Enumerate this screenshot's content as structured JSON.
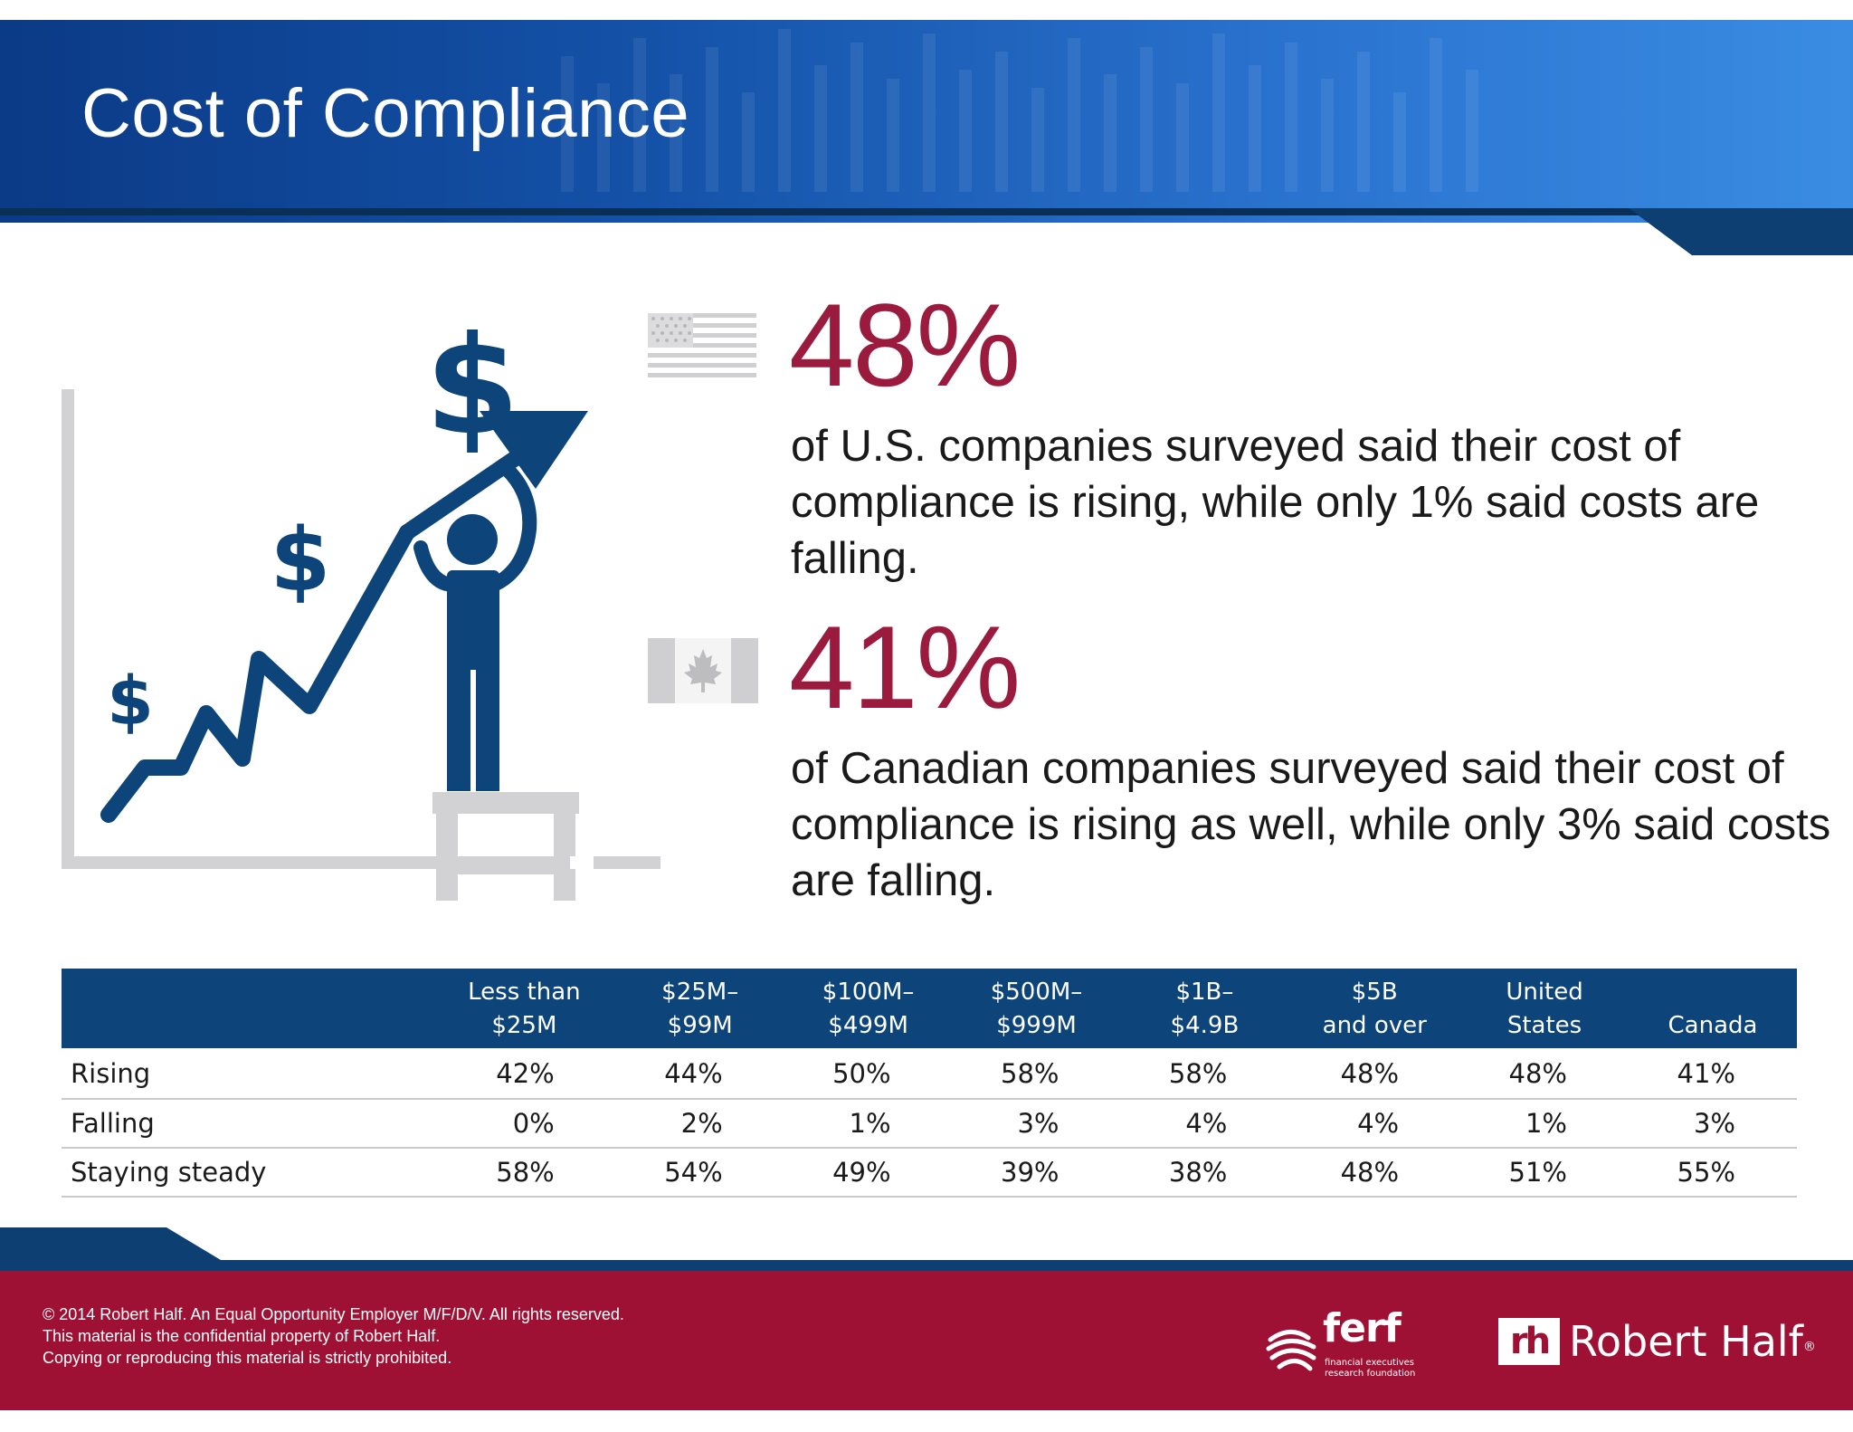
{
  "header": {
    "title": "Cost of Compliance"
  },
  "colors": {
    "header_blue": "#1452a8",
    "navy": "#0d4479",
    "accent_red": "#9b1b3f",
    "footer_red": "#9e1134",
    "grey": "#c9c9c9"
  },
  "stats": {
    "us": {
      "flag_icon": "us-flag-icon",
      "value": "48%",
      "text": "of U.S. companies surveyed said their cost of compliance is rising, while only 1% said costs are falling."
    },
    "canada": {
      "flag_icon": "canada-flag-icon",
      "value": "41%",
      "text": "of Canadian companies surveyed said their cost of compliance is rising as well, while only 3% said costs are falling."
    }
  },
  "table": {
    "columns": [
      {
        "line1": "Less than",
        "line2": "$25M"
      },
      {
        "line1": "$25M–",
        "line2": "$99M"
      },
      {
        "line1": "$100M–",
        "line2": "$499M"
      },
      {
        "line1": "$500M–",
        "line2": "$999M"
      },
      {
        "line1": "$1B–",
        "line2": "$4.9B"
      },
      {
        "line1": "$5B",
        "line2": "and over"
      },
      {
        "line1": "United",
        "line2": "States"
      },
      {
        "line1": "",
        "line2": "Canada"
      }
    ],
    "rows": [
      {
        "label": "Rising",
        "values": [
          "42%",
          "44%",
          "50%",
          "58%",
          "58%",
          "48%",
          "48%",
          "41%"
        ]
      },
      {
        "label": "Falling",
        "values": [
          "0%",
          "2%",
          "1%",
          "3%",
          "4%",
          "4%",
          "1%",
          "3%"
        ]
      },
      {
        "label": "Staying steady",
        "values": [
          "58%",
          "54%",
          "49%",
          "39%",
          "38%",
          "48%",
          "51%",
          "55%"
        ]
      }
    ]
  },
  "footer": {
    "legal": [
      "© 2014 Robert Half. An Equal Opportunity Employer M/F/D/V. All rights reserved.",
      "This material is the confidential property of Robert Half.",
      "Copying or reproducing this material is strictly prohibited."
    ],
    "ferf": {
      "word": "ferf",
      "sub1": "financial executives",
      "sub2": "research foundation"
    },
    "robert_half": {
      "mark": "rh",
      "word": "Robert Half",
      "reg": "®"
    }
  }
}
